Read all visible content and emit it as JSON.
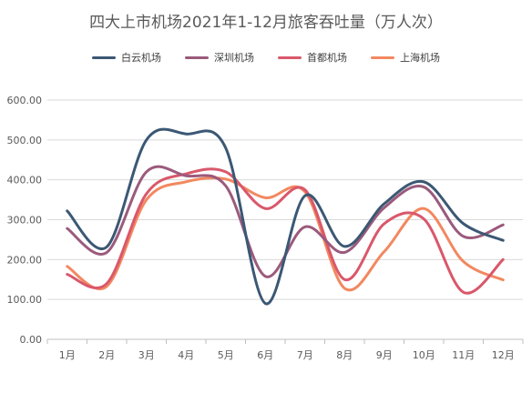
{
  "chart_data": {
    "type": "line",
    "title": "四大上市机场2021年1-12月旅客吞吐量（万人次）",
    "categories": [
      "1月",
      "2月",
      "3月",
      "4月",
      "5月",
      "6月",
      "7月",
      "8月",
      "9月",
      "10月",
      "11月",
      "12月"
    ],
    "ylim": [
      0,
      600
    ],
    "yticks": [
      "0.00",
      "100.00",
      "200.00",
      "300.00",
      "400.00",
      "500.00",
      "600.00"
    ],
    "grid": true,
    "legend_position": "top",
    "series": [
      {
        "name": "白云机场",
        "color": "#3b5874",
        "values": [
          322,
          232,
          500,
          515,
          480,
          90,
          360,
          233,
          340,
          395,
          290,
          248
        ]
      },
      {
        "name": "深圳机场",
        "color": "#9b5a7c",
        "values": [
          278,
          218,
          420,
          410,
          385,
          158,
          282,
          218,
          330,
          382,
          258,
          287
        ]
      },
      {
        "name": "首都机场",
        "color": "#d9586b",
        "values": [
          163,
          140,
          365,
          415,
          420,
          328,
          375,
          150,
          290,
          302,
          118,
          200
        ]
      },
      {
        "name": "上海机场",
        "color": "#f28860",
        "values": [
          183,
          133,
          350,
          395,
          402,
          355,
          370,
          128,
          220,
          328,
          195,
          149
        ]
      }
    ]
  }
}
